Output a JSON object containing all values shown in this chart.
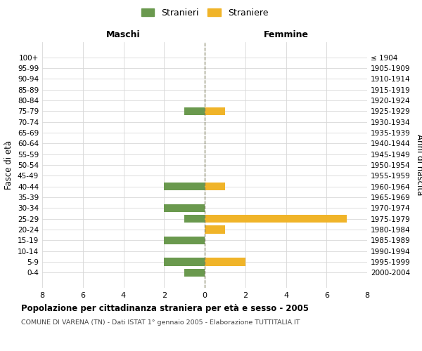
{
  "age_groups": [
    "100+",
    "95-99",
    "90-94",
    "85-89",
    "80-84",
    "75-79",
    "70-74",
    "65-69",
    "60-64",
    "55-59",
    "50-54",
    "45-49",
    "40-44",
    "35-39",
    "30-34",
    "25-29",
    "20-24",
    "15-19",
    "10-14",
    "5-9",
    "0-4"
  ],
  "birth_years": [
    "≤ 1904",
    "1905-1909",
    "1910-1914",
    "1915-1919",
    "1920-1924",
    "1925-1929",
    "1930-1934",
    "1935-1939",
    "1940-1944",
    "1945-1949",
    "1950-1954",
    "1955-1959",
    "1960-1964",
    "1965-1969",
    "1970-1974",
    "1975-1979",
    "1980-1984",
    "1985-1989",
    "1990-1994",
    "1995-1999",
    "2000-2004"
  ],
  "males": [
    0,
    0,
    0,
    0,
    0,
    -1,
    0,
    0,
    0,
    0,
    0,
    0,
    -2,
    0,
    -2,
    -1,
    0,
    -2,
    0,
    -2,
    -1
  ],
  "females": [
    0,
    0,
    0,
    0,
    0,
    1,
    0,
    0,
    0,
    0,
    0,
    0,
    1,
    0,
    0,
    7,
    1,
    0,
    0,
    2,
    0
  ],
  "male_color": "#6a994e",
  "female_color": "#f0b429",
  "title": "Popolazione per cittadinanza straniera per età e sesso - 2005",
  "subtitle": "COMUNE DI VARENA (TN) - Dati ISTAT 1° gennaio 2005 - Elaborazione TUTTITALIA.IT",
  "xlabel_left": "Maschi",
  "xlabel_right": "Femmine",
  "ylabel_left": "Fasce di età",
  "ylabel_right": "Anni di nascita",
  "xlim": [
    -8,
    8
  ],
  "xticks": [
    -8,
    -6,
    -4,
    -2,
    0,
    2,
    4,
    6,
    8
  ],
  "xtick_labels": [
    "8",
    "6",
    "4",
    "2",
    "0",
    "2",
    "4",
    "6",
    "8"
  ],
  "legend_stranieri": "Stranieri",
  "legend_straniere": "Straniere",
  "background_color": "#ffffff",
  "grid_color": "#d8d8d8",
  "bar_height": 0.75,
  "center_line_color": "#808060"
}
